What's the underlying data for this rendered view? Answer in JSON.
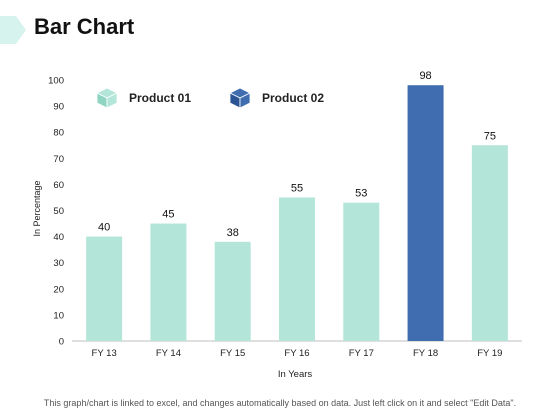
{
  "header": {
    "title": "Bar Chart"
  },
  "footer": {
    "note": "This graph/chart is linked to excel, and changes automatically based on data. Just left click on it and select \"Edit Data\"."
  },
  "colors": {
    "product_01": "#b3e6d8",
    "product_02": "#3f6db0",
    "accent": "#d7f3ed",
    "axis": "#bfbfbf"
  },
  "legend": [
    {
      "label": "Product 01",
      "icon": "cube-icon",
      "color": "#b3e6d8"
    },
    {
      "label": "Product 02",
      "icon": "cube-icon",
      "color": "#3f6db0"
    }
  ],
  "chart_data": {
    "type": "bar",
    "title": "",
    "xlabel": "In Years",
    "ylabel": "In Percentage",
    "ylim": [
      0,
      100
    ],
    "yticks": [
      0,
      10,
      20,
      30,
      40,
      50,
      60,
      70,
      80,
      90,
      100
    ],
    "categories": [
      "FY 13",
      "FY 14",
      "FY 15",
      "FY 16",
      "FY 17",
      "FY 18",
      "FY 19"
    ],
    "values": [
      40,
      45,
      38,
      55,
      53,
      98,
      75
    ],
    "series_index": [
      0,
      0,
      0,
      0,
      0,
      1,
      0
    ],
    "grid": false,
    "legend_position": "top-left"
  }
}
